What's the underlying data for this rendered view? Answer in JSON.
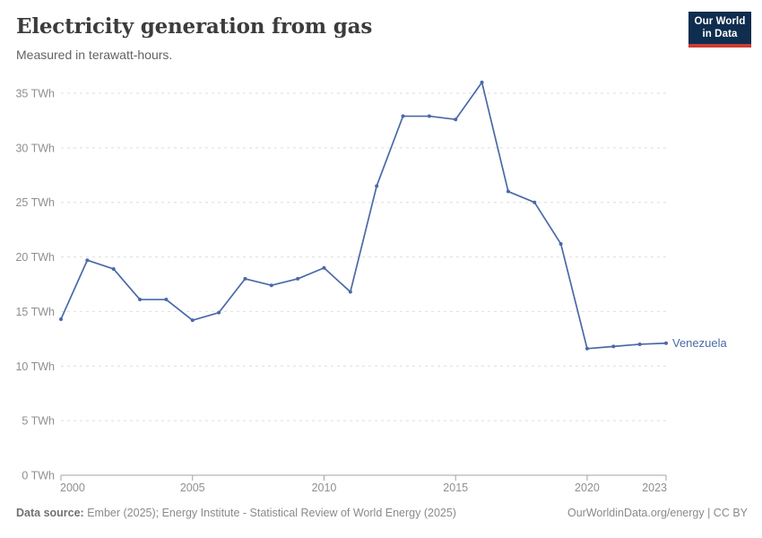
{
  "header": {
    "title": "Electricity generation from gas",
    "subtitle": "Measured in terawatt-hours.",
    "logo": {
      "line1": "Our World",
      "line2": "in Data"
    }
  },
  "chart_data": {
    "type": "line",
    "title": "Electricity generation from gas",
    "subtitle": "Measured in terawatt-hours.",
    "unit": "TWh",
    "x": [
      2000,
      2001,
      2002,
      2003,
      2004,
      2005,
      2006,
      2007,
      2008,
      2009,
      2010,
      2011,
      2012,
      2013,
      2014,
      2015,
      2016,
      2017,
      2018,
      2019,
      2020,
      2021,
      2022,
      2023
    ],
    "series": [
      {
        "name": "Venezuela",
        "values": [
          14.3,
          19.7,
          18.9,
          16.1,
          16.1,
          14.2,
          14.9,
          18.0,
          17.4,
          18.0,
          19.0,
          16.8,
          26.5,
          32.9,
          32.9,
          32.6,
          36.0,
          26.0,
          25.0,
          21.2,
          11.6,
          11.8,
          12.0,
          12.1
        ]
      }
    ],
    "xlim": [
      2000,
      2023
    ],
    "ylim": [
      0,
      35
    ],
    "yticks": [
      0,
      5,
      10,
      15,
      20,
      25,
      30,
      35
    ],
    "ytick_suffix": " TWh",
    "xticks": [
      2000,
      2005,
      2010,
      2015,
      2020,
      2023
    ],
    "grid": "horizontal-dashed",
    "legend_position": "line-end-label"
  },
  "footer": {
    "source_label": "Data source:",
    "source_text": " Ember (2025); Energy Institute - Statistical Review of World Energy (2025)",
    "attribution": "OurWorldinData.org/energy | CC BY"
  },
  "colors": {
    "line": "#4a69a8",
    "logo_bg": "#0f2d4f",
    "logo_accent": "#cc3b33",
    "grid": "#dedede",
    "axis": "#a3a3a3",
    "tick_label": "#8f8f8f",
    "title": "#3c3c3c",
    "subtitle": "#636363",
    "footer": "#8a8a8a"
  }
}
